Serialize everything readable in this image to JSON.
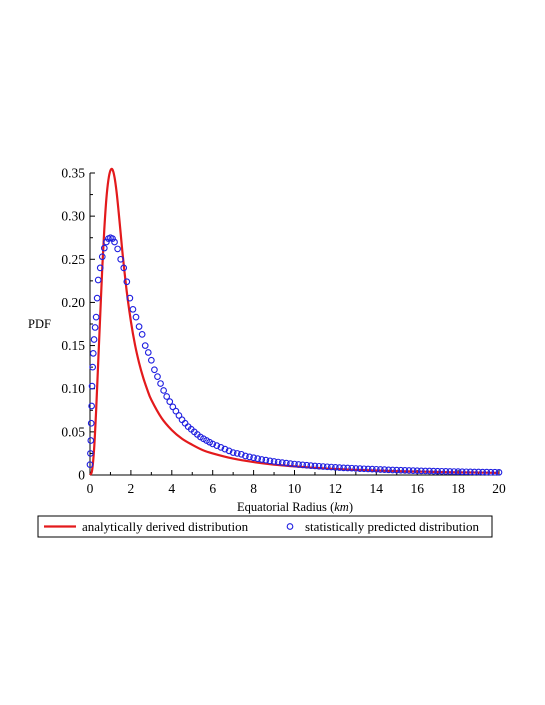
{
  "chart_data": {
    "type": "line",
    "title": "",
    "xlabel": "Equatorial Radius",
    "xlabel_unit": "km",
    "ylabel": "PDF",
    "xlim": [
      0,
      20
    ],
    "ylim": [
      0,
      0.35
    ],
    "x_ticks": [
      0,
      2,
      4,
      6,
      8,
      10,
      12,
      14,
      16,
      18,
      20
    ],
    "y_ticks": [
      "0",
      "0.05",
      "0.10",
      "0.15",
      "0.20",
      "0.25",
      "0.30",
      "0.35"
    ],
    "grid": false,
    "legend_position": "bottom",
    "series": [
      {
        "name": "analytically derived distribution",
        "style": "line",
        "color": "#e31a1c",
        "x": [
          0,
          0.1,
          0.2,
          0.3,
          0.4,
          0.5,
          0.6,
          0.7,
          0.8,
          0.9,
          1.0,
          1.1,
          1.2,
          1.3,
          1.4,
          1.5,
          1.6,
          1.8,
          2.0,
          2.2,
          2.4,
          2.6,
          2.8,
          3.0,
          3.5,
          4.0,
          4.5,
          5.0,
          5.5,
          6.0,
          7.0,
          8.0,
          9.0,
          10.0,
          11.0,
          12.0,
          13.0,
          14.0,
          15.0,
          16.0,
          17.0,
          18.0,
          19.0,
          20.0
        ],
        "y": [
          0,
          0.005,
          0.03,
          0.075,
          0.13,
          0.185,
          0.24,
          0.285,
          0.32,
          0.342,
          0.353,
          0.354,
          0.345,
          0.328,
          0.305,
          0.28,
          0.255,
          0.212,
          0.178,
          0.151,
          0.13,
          0.113,
          0.099,
          0.087,
          0.066,
          0.052,
          0.042,
          0.035,
          0.029,
          0.025,
          0.019,
          0.015,
          0.012,
          0.01,
          0.0083,
          0.007,
          0.006,
          0.0052,
          0.0045,
          0.004,
          0.0035,
          0.0031,
          0.0028,
          0.0025
        ]
      },
      {
        "name": "statistically predicted distribution",
        "style": "markers",
        "marker": "open-circle",
        "color": "#1f1fe0",
        "x": [
          0,
          0.02,
          0.04,
          0.06,
          0.08,
          0.1,
          0.13,
          0.16,
          0.2,
          0.25,
          0.3,
          0.35,
          0.4,
          0.5,
          0.6,
          0.7,
          0.8,
          0.9,
          1.0,
          1.1,
          1.2,
          1.35,
          1.5,
          1.65,
          1.8,
          1.95,
          2.1,
          2.25,
          2.4,
          2.55,
          2.7,
          2.85,
          3.0,
          3.15,
          3.3,
          3.45,
          3.6,
          3.75,
          3.9,
          4.05,
          4.2,
          4.35,
          4.5,
          4.65,
          4.8,
          4.95,
          5.1,
          5.25,
          5.4,
          5.55,
          5.7,
          5.85,
          6.0,
          6.2,
          6.4,
          6.6,
          6.8,
          7.0,
          7.2,
          7.4,
          7.6,
          7.8,
          8.0,
          8.2,
          8.4,
          8.6,
          8.8,
          9.0,
          9.2,
          9.4,
          9.6,
          9.8,
          10.0,
          10.2,
          10.4,
          10.6,
          10.8,
          11.0,
          11.2,
          11.4,
          11.6,
          11.8,
          12.0,
          12.2,
          12.4,
          12.6,
          12.8,
          13.0,
          13.2,
          13.4,
          13.6,
          13.8,
          14.0,
          14.2,
          14.4,
          14.6,
          14.8,
          15.0,
          15.2,
          15.4,
          15.6,
          15.8,
          16.0,
          16.2,
          16.4,
          16.6,
          16.8,
          17.0,
          17.2,
          17.4,
          17.6,
          17.8,
          18.0,
          18.2,
          18.4,
          18.6,
          18.8,
          19.0,
          19.2,
          19.4,
          19.6,
          19.8,
          20.0
        ],
        "y": [
          0.012,
          0.025,
          0.04,
          0.06,
          0.08,
          0.103,
          0.125,
          0.141,
          0.157,
          0.171,
          0.183,
          0.205,
          0.226,
          0.24,
          0.253,
          0.263,
          0.27,
          0.274,
          0.275,
          0.274,
          0.27,
          0.262,
          0.25,
          0.24,
          0.224,
          0.205,
          0.192,
          0.183,
          0.172,
          0.163,
          0.15,
          0.142,
          0.133,
          0.122,
          0.114,
          0.106,
          0.098,
          0.091,
          0.085,
          0.079,
          0.074,
          0.069,
          0.064,
          0.06,
          0.056,
          0.053,
          0.05,
          0.047,
          0.044,
          0.042,
          0.04,
          0.038,
          0.036,
          0.034,
          0.032,
          0.03,
          0.028,
          0.026,
          0.025,
          0.024,
          0.022,
          0.021,
          0.02,
          0.019,
          0.018,
          0.0172,
          0.0164,
          0.0157,
          0.015,
          0.0144,
          0.0138,
          0.0132,
          0.0127,
          0.0122,
          0.0117,
          0.0113,
          0.0109,
          0.0105,
          0.0101,
          0.0098,
          0.0095,
          0.0092,
          0.0089,
          0.0086,
          0.0083,
          0.0081,
          0.0079,
          0.0076,
          0.0074,
          0.0072,
          0.007,
          0.0068,
          0.0066,
          0.0064,
          0.0062,
          0.006,
          0.0058,
          0.0057,
          0.0055,
          0.0054,
          0.0052,
          0.0051,
          0.005,
          0.0048,
          0.0047,
          0.0046,
          0.0045,
          0.0044,
          0.0043,
          0.0042,
          0.0041,
          0.004,
          0.0039,
          0.0038,
          0.0037,
          0.0036,
          0.0035,
          0.0035,
          0.0034,
          0.0033,
          0.0032,
          0.0032,
          0.0031
        ]
      }
    ]
  }
}
